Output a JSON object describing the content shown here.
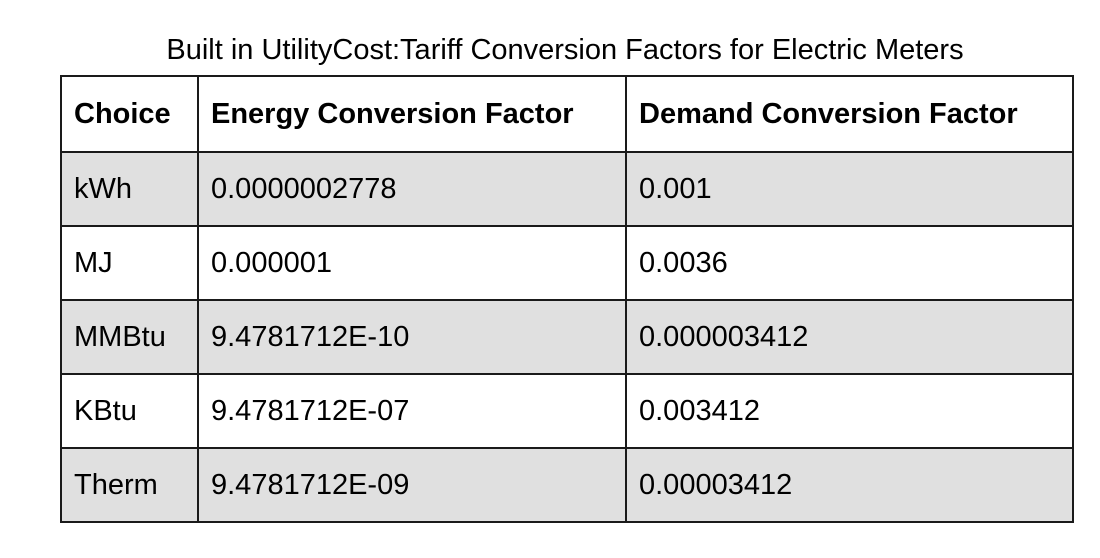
{
  "caption": "Built in UtilityCost:Tariff Conversion Factors for Electric Meters",
  "table": {
    "headers": [
      "Choice",
      "Energy Conversion Factor",
      "Demand Conversion Factor"
    ],
    "rows": [
      [
        "kWh",
        "0.0000002778",
        "0.001"
      ],
      [
        "MJ",
        "0.000001",
        "0.0036"
      ],
      [
        "MMBtu",
        "9.4781712E-10",
        "0.000003412"
      ],
      [
        "KBtu",
        "9.4781712E-07",
        "0.003412"
      ],
      [
        "Therm",
        "9.4781712E-09",
        "0.00003412"
      ]
    ]
  },
  "colors": {
    "shaded_row": "#e0e0e0",
    "plain_row": "#ffffff",
    "border": "#1a1a1a"
  }
}
